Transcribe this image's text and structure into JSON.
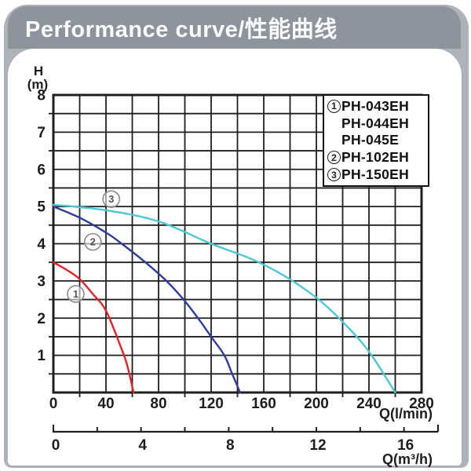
{
  "title": "Performance curve/性能曲线",
  "legend": {
    "items": [
      {
        "prefix": "1",
        "label": "PH-043EH"
      },
      {
        "prefix": "",
        "label": "PH-044EH"
      },
      {
        "prefix": "",
        "label": "PH-045E"
      },
      {
        "prefix": "2",
        "label": "PH-102EH"
      },
      {
        "prefix": "3",
        "label": "PH-150EH"
      }
    ]
  },
  "chart_data": {
    "type": "line",
    "grid": true,
    "legend_position": "top-right",
    "x_axis": {
      "label": "Q(l/min)",
      "min": 0,
      "max": 280,
      "grid_step": 20,
      "tick_labels": [
        0,
        40,
        80,
        120,
        160,
        200,
        240,
        280
      ]
    },
    "y_axis": {
      "label_top": "H",
      "label_unit": "(m)",
      "min": 0,
      "max": 8,
      "grid_step": 0.5,
      "tick_labels": [
        1,
        2,
        3,
        4,
        5,
        6,
        7,
        8
      ]
    },
    "secondary_x_axis": {
      "label": "Q(m³/h)",
      "min": 0,
      "max": 16,
      "tick_step": 2,
      "tick_labels": [
        0,
        4,
        8,
        12,
        16
      ],
      "lmin_per_unit": 16.6667
    },
    "series": [
      {
        "name": "PH-043EH / PH-044EH / PH-045E",
        "marker": "1",
        "color": "#e62129",
        "points": [
          [
            0,
            3.5
          ],
          [
            10,
            3.3
          ],
          [
            20,
            3.05
          ],
          [
            30,
            2.65
          ],
          [
            40,
            2.2
          ],
          [
            51,
            1.25
          ],
          [
            56,
            0.75
          ],
          [
            61,
            0
          ]
        ]
      },
      {
        "name": "PH-102EH",
        "marker": "2",
        "color": "#2e3d9c",
        "points": [
          [
            0,
            5.0
          ],
          [
            20,
            4.7
          ],
          [
            40,
            4.3
          ],
          [
            52,
            4.0
          ],
          [
            70,
            3.5
          ],
          [
            86,
            3.0
          ],
          [
            99,
            2.5
          ],
          [
            110,
            2.0
          ],
          [
            120,
            1.5
          ],
          [
            130,
            1.0
          ],
          [
            136,
            0.5
          ],
          [
            142,
            0
          ]
        ]
      },
      {
        "name": "PH-150EH",
        "marker": "3",
        "color": "#4cc7d4",
        "points": [
          [
            0,
            5.05
          ],
          [
            40,
            4.9
          ],
          [
            80,
            4.6
          ],
          [
            120,
            4.0
          ],
          [
            150,
            3.6
          ],
          [
            175,
            3.15
          ],
          [
            200,
            2.55
          ],
          [
            220,
            1.9
          ],
          [
            240,
            1.1
          ],
          [
            260,
            0
          ]
        ]
      }
    ],
    "annotations": [
      {
        "label": "1",
        "q": 17,
        "h": 2.65
      },
      {
        "label": "2",
        "q": 30,
        "h": 4.05
      },
      {
        "label": "3",
        "q": 44,
        "h": 5.2
      }
    ]
  },
  "colors": {
    "titlebar": "#8e949c",
    "card": "#aeb2b9",
    "grid": "#1f1f1f",
    "text": "#1d1d1d",
    "curve1": "#e62129",
    "curve2": "#2e3d9c",
    "curve3": "#4cc7d4"
  }
}
